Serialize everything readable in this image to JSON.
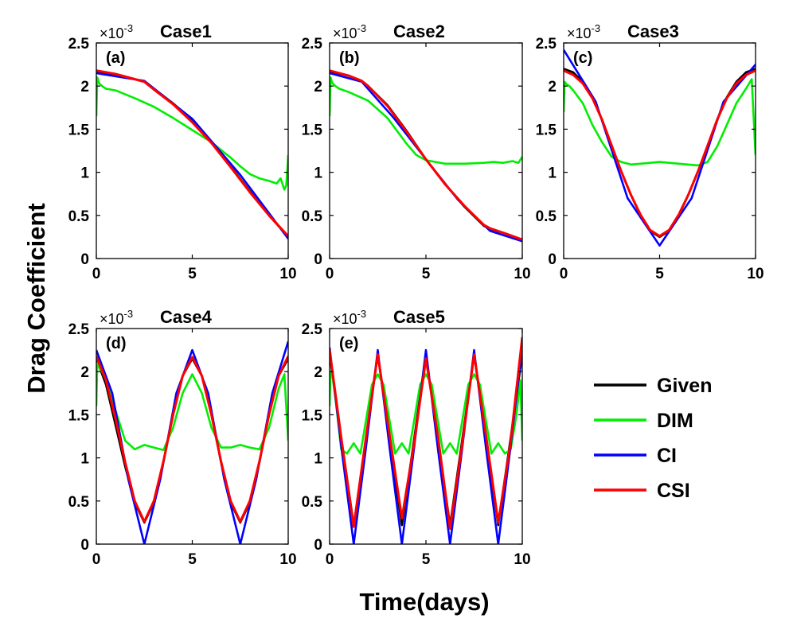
{
  "ylabel": "Drag Coefficient",
  "xlabel": "Time(days)",
  "colors": {
    "Given": "#000000",
    "DIM": "#00ee00",
    "CI": "#0000ff",
    "CSI": "#ff0000"
  },
  "legend": {
    "placement": "right",
    "entries": [
      "Given",
      "DIM",
      "CI",
      "CSI"
    ]
  },
  "chart_data": [
    {
      "type": "line",
      "title": "Case1",
      "panel_label": "(a)",
      "exponent_base": "×10",
      "exponent": "-3",
      "xlim": [
        0,
        10
      ],
      "ylim": [
        0,
        2.5
      ],
      "xticks": [
        "0",
        "5",
        "10"
      ],
      "yticks": [
        "0",
        "0.5",
        "1",
        "1.5",
        "2",
        "2.5"
      ],
      "series": [
        {
          "name": "Given",
          "x": [
            0,
            1,
            2,
            2.5,
            3,
            4,
            5,
            6,
            7,
            8,
            9,
            10
          ],
          "values": [
            2.17,
            2.13,
            2.08,
            2.05,
            1.97,
            1.8,
            1.6,
            1.35,
            1.07,
            0.78,
            0.5,
            0.25
          ]
        },
        {
          "name": "CI",
          "x": [
            0,
            2.5,
            5,
            7.5,
            10
          ],
          "values": [
            2.15,
            2.06,
            1.62,
            0.97,
            0.23
          ]
        },
        {
          "name": "CSI",
          "x": [
            0,
            1,
            2,
            2.5,
            3,
            4,
            5,
            6,
            7,
            8,
            9,
            10
          ],
          "values": [
            2.18,
            2.14,
            2.08,
            2.05,
            1.96,
            1.79,
            1.58,
            1.34,
            1.06,
            0.77,
            0.5,
            0.26
          ]
        },
        {
          "name": "DIM",
          "x": [
            0,
            0.05,
            0.15,
            0.3,
            0.5,
            1,
            2,
            3,
            4,
            5,
            6,
            7,
            7.5,
            8,
            8.5,
            9,
            9.4,
            9.6,
            9.8,
            9.9,
            10
          ],
          "values": [
            1.65,
            2.1,
            2.03,
            2.0,
            1.97,
            1.95,
            1.86,
            1.76,
            1.63,
            1.49,
            1.35,
            1.17,
            1.07,
            0.98,
            0.93,
            0.9,
            0.87,
            0.93,
            0.8,
            0.85,
            1.2
          ]
        }
      ]
    },
    {
      "type": "line",
      "title": "Case2",
      "panel_label": "(b)",
      "exponent_base": "×10",
      "exponent": "-3",
      "xlim": [
        0,
        10
      ],
      "ylim": [
        0,
        2.5
      ],
      "xticks": [
        "0",
        "5",
        "10"
      ],
      "yticks": [
        "0",
        "0.5",
        "1",
        "1.5",
        "2",
        "2.5"
      ],
      "series": [
        {
          "name": "Given",
          "x": [
            0,
            1,
            1.67,
            2,
            3,
            4,
            5,
            6,
            7,
            8,
            8.33,
            9,
            10
          ],
          "values": [
            2.17,
            2.12,
            2.06,
            2.0,
            1.78,
            1.48,
            1.15,
            0.86,
            0.6,
            0.38,
            0.34,
            0.3,
            0.22
          ]
        },
        {
          "name": "CI",
          "x": [
            0,
            1.67,
            3.33,
            5,
            6.67,
            8.33,
            10
          ],
          "values": [
            2.15,
            2.05,
            1.63,
            1.15,
            0.68,
            0.32,
            0.2
          ]
        },
        {
          "name": "CSI",
          "x": [
            0,
            1,
            1.67,
            2,
            3,
            4,
            5,
            6,
            7,
            8,
            8.33,
            9,
            10
          ],
          "values": [
            2.18,
            2.12,
            2.06,
            2.0,
            1.77,
            1.47,
            1.15,
            0.86,
            0.61,
            0.39,
            0.35,
            0.3,
            0.22
          ]
        },
        {
          "name": "DIM",
          "x": [
            0,
            0.05,
            0.15,
            0.3,
            0.5,
            1,
            2,
            3,
            4,
            4.5,
            5,
            5.5,
            6,
            7,
            8,
            8.5,
            9,
            9.5,
            9.8,
            10
          ],
          "values": [
            1.65,
            2.1,
            2.03,
            2.0,
            1.97,
            1.93,
            1.83,
            1.63,
            1.33,
            1.2,
            1.14,
            1.12,
            1.1,
            1.1,
            1.11,
            1.12,
            1.11,
            1.13,
            1.11,
            1.18
          ]
        }
      ]
    },
    {
      "type": "line",
      "title": "Case3",
      "panel_label": "(c)",
      "exponent_base": "×10",
      "exponent": "-3",
      "xlim": [
        0,
        10
      ],
      "ylim": [
        0,
        2.5
      ],
      "xticks": [
        "0",
        "5",
        "10"
      ],
      "yticks": [
        "0",
        "0.5",
        "1",
        "1.5",
        "2",
        "2.5"
      ],
      "series": [
        {
          "name": "Given",
          "x": [
            0,
            0.5,
            1,
            1.5,
            2,
            2.5,
            3,
            3.5,
            4,
            4.5,
            5,
            5.5,
            6,
            6.5,
            7,
            7.5,
            8,
            8.5,
            9,
            9.5,
            10
          ],
          "values": [
            2.2,
            2.16,
            2.05,
            1.87,
            1.61,
            1.31,
            1.01,
            0.74,
            0.5,
            0.32,
            0.25,
            0.32,
            0.5,
            0.74,
            1.01,
            1.31,
            1.61,
            1.87,
            2.05,
            2.16,
            2.2
          ]
        },
        {
          "name": "CI",
          "x": [
            0,
            1.67,
            3.33,
            5,
            6.67,
            8.33,
            10
          ],
          "values": [
            2.42,
            1.82,
            0.7,
            0.15,
            0.7,
            1.82,
            2.25
          ]
        },
        {
          "name": "CSI",
          "x": [
            0,
            0.5,
            1,
            1.5,
            2,
            2.5,
            3,
            3.5,
            4,
            4.5,
            5,
            5.5,
            6,
            6.5,
            7,
            7.5,
            8,
            8.5,
            9,
            9.5,
            10
          ],
          "values": [
            2.18,
            2.13,
            2.03,
            1.86,
            1.61,
            1.31,
            1.01,
            0.74,
            0.51,
            0.33,
            0.26,
            0.33,
            0.51,
            0.74,
            1.01,
            1.31,
            1.61,
            1.86,
            2.03,
            2.13,
            2.18
          ]
        },
        {
          "name": "DIM",
          "x": [
            0,
            0.05,
            0.15,
            0.3,
            0.5,
            1,
            1.5,
            2,
            2.5,
            3,
            3.5,
            4,
            5,
            6,
            7,
            7.5,
            8,
            8.5,
            9,
            9.5,
            9.8,
            10
          ],
          "values": [
            1.7,
            2.05,
            2.02,
            2.0,
            1.95,
            1.8,
            1.55,
            1.35,
            1.18,
            1.12,
            1.09,
            1.1,
            1.12,
            1.1,
            1.08,
            1.12,
            1.3,
            1.55,
            1.8,
            1.97,
            2.08,
            1.2
          ]
        }
      ]
    },
    {
      "type": "line",
      "title": "Case4",
      "panel_label": "(d)",
      "exponent_base": "×10",
      "exponent": "-3",
      "xlim": [
        0,
        10
      ],
      "ylim": [
        0,
        2.5
      ],
      "xticks": [
        "0",
        "5",
        "10"
      ],
      "yticks": [
        "0",
        "0.5",
        "1",
        "1.5",
        "2",
        "2.5"
      ],
      "series": [
        {
          "name": "Given",
          "x": [
            0,
            0.5,
            1,
            1.5,
            2,
            2.5,
            3,
            3.5,
            4,
            4.5,
            5,
            5.5,
            6,
            6.5,
            7,
            7.5,
            8,
            8.5,
            9,
            9.5,
            10
          ],
          "values": [
            2.15,
            1.85,
            1.38,
            0.9,
            0.48,
            0.25,
            0.48,
            0.95,
            1.5,
            1.95,
            2.15,
            1.95,
            1.5,
            0.95,
            0.48,
            0.25,
            0.48,
            0.95,
            1.5,
            1.95,
            2.15
          ]
        },
        {
          "name": "CI",
          "x": [
            0,
            0.83,
            1.67,
            2.5,
            3.33,
            4.17,
            5,
            5.83,
            6.67,
            7.5,
            8.33,
            9.17,
            10
          ],
          "values": [
            2.25,
            1.75,
            0.75,
            0.0,
            0.75,
            1.75,
            2.25,
            1.75,
            0.75,
            0.0,
            0.75,
            1.75,
            2.35
          ]
        },
        {
          "name": "CSI",
          "x": [
            0,
            0.5,
            1,
            1.5,
            2,
            2.5,
            3,
            3.5,
            4,
            4.5,
            5,
            5.5,
            6,
            6.5,
            7,
            7.5,
            8,
            8.5,
            9,
            9.5,
            10
          ],
          "values": [
            2.18,
            1.9,
            1.45,
            0.95,
            0.5,
            0.26,
            0.5,
            0.96,
            1.5,
            1.95,
            2.17,
            1.95,
            1.5,
            0.96,
            0.5,
            0.26,
            0.5,
            0.96,
            1.5,
            1.95,
            2.18
          ]
        },
        {
          "name": "DIM",
          "x": [
            0,
            0.05,
            0.15,
            0.3,
            0.6,
            1,
            1.5,
            2,
            2.5,
            3,
            3.5,
            4,
            4.5,
            5,
            5.5,
            6,
            6.5,
            7,
            7.5,
            8,
            8.5,
            9,
            9.5,
            9.8,
            10
          ],
          "values": [
            1.6,
            2.1,
            2.05,
            2.0,
            1.85,
            1.55,
            1.2,
            1.1,
            1.15,
            1.12,
            1.09,
            1.35,
            1.75,
            1.97,
            1.75,
            1.35,
            1.12,
            1.12,
            1.15,
            1.12,
            1.1,
            1.35,
            1.8,
            1.97,
            1.2
          ]
        }
      ]
    },
    {
      "type": "line",
      "title": "Case5",
      "panel_label": "(e)",
      "exponent_base": "×10",
      "exponent": "-3",
      "xlim": [
        0,
        10
      ],
      "ylim": [
        0,
        2.5
      ],
      "xticks": [
        "0",
        "5",
        "10"
      ],
      "yticks": [
        "0",
        "0.5",
        "1",
        "1.5",
        "2",
        "2.5"
      ],
      "series": [
        {
          "name": "Given",
          "x": [
            0,
            0.625,
            1.25,
            1.875,
            2.5,
            3.125,
            3.75,
            4.375,
            5,
            5.625,
            6.25,
            6.875,
            7.5,
            8.125,
            8.75,
            9.375,
            10
          ],
          "values": [
            2.2,
            1.2,
            0.22,
            1.2,
            2.2,
            1.2,
            0.22,
            1.2,
            2.2,
            1.2,
            0.22,
            1.2,
            2.2,
            1.2,
            0.22,
            1.2,
            2.2
          ]
        },
        {
          "name": "CI",
          "x": [
            0,
            0.625,
            1.25,
            1.875,
            2.5,
            3.125,
            3.75,
            4.375,
            5,
            5.625,
            6.25,
            6.875,
            7.5,
            8.125,
            8.75,
            9.375,
            10
          ],
          "values": [
            2.28,
            1.1,
            0.0,
            1.1,
            2.25,
            1.1,
            0.0,
            1.1,
            2.25,
            1.1,
            0.0,
            1.1,
            2.25,
            1.1,
            0.0,
            1.1,
            2.28
          ]
        },
        {
          "name": "CSI",
          "x": [
            0,
            0.625,
            1.25,
            1.875,
            2.5,
            3.125,
            3.75,
            4.375,
            5,
            5.625,
            6.25,
            6.875,
            7.5,
            8.125,
            8.75,
            9.375,
            10
          ],
          "values": [
            2.25,
            1.2,
            0.2,
            1.22,
            2.2,
            1.25,
            0.3,
            1.15,
            2.15,
            1.25,
            0.18,
            1.15,
            2.2,
            1.25,
            0.25,
            1.15,
            2.4
          ]
        },
        {
          "name": "DIM",
          "x": [
            0,
            0.05,
            0.15,
            0.35,
            0.6,
            0.9,
            1.25,
            1.6,
            1.9,
            2.2,
            2.5,
            2.8,
            3.1,
            3.4,
            3.75,
            4.1,
            4.4,
            4.7,
            5,
            5.3,
            5.6,
            5.9,
            6.25,
            6.6,
            6.9,
            7.2,
            7.5,
            7.8,
            8.1,
            8.4,
            8.75,
            9.1,
            9.4,
            9.7,
            9.9,
            10
          ],
          "values": [
            1.6,
            2.0,
            1.95,
            1.6,
            1.1,
            1.05,
            1.17,
            1.05,
            1.45,
            1.85,
            1.97,
            1.85,
            1.45,
            1.05,
            1.17,
            1.05,
            1.45,
            1.85,
            1.97,
            1.85,
            1.45,
            1.05,
            1.17,
            1.05,
            1.45,
            1.85,
            1.97,
            1.85,
            1.45,
            1.05,
            1.17,
            1.05,
            1.1,
            1.5,
            1.9,
            1.2
          ]
        }
      ]
    }
  ]
}
